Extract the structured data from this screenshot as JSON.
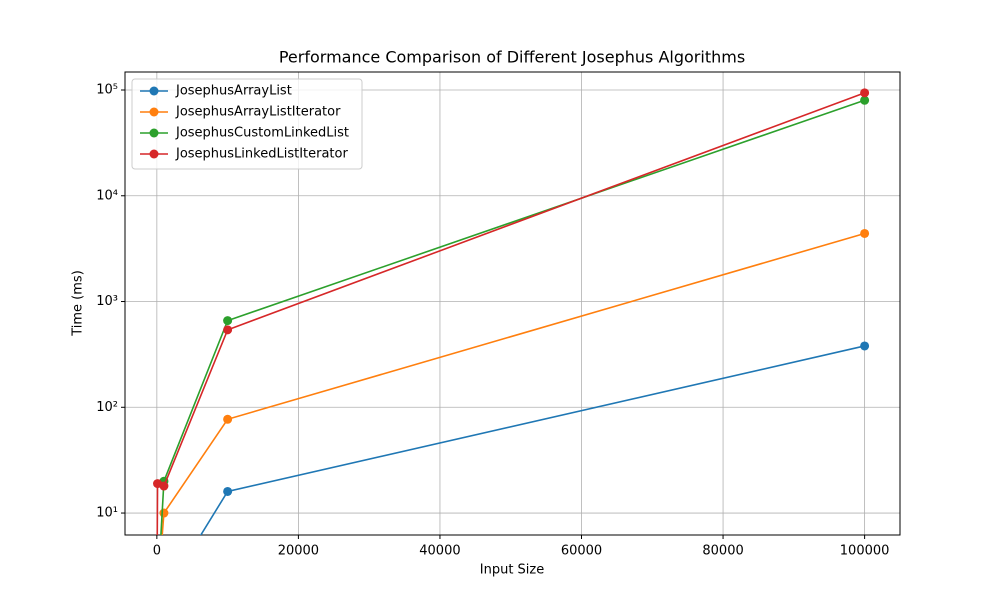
{
  "chart_data": {
    "type": "line",
    "title": "Performance Comparison of Different Josephus Algorithms",
    "x_label": "Input Size",
    "y_label": "Time (ms)",
    "x": [
      10,
      100,
      1000,
      10000,
      100000
    ],
    "series": [
      {
        "name": "JosephusArrayList",
        "color": "#1f77b4",
        "values": [
          0,
          0,
          0,
          16,
          380
        ]
      },
      {
        "name": "JosephusArrayListIterator",
        "color": "#ff7f0e",
        "values": [
          0,
          0,
          10,
          77,
          4400
        ]
      },
      {
        "name": "JosephusCustomLinkedList",
        "color": "#2ca02c",
        "values": [
          0,
          0,
          20,
          660,
          80000
        ]
      },
      {
        "name": "JosephusLinkedListIterator",
        "color": "#d62728",
        "values": [
          0,
          19,
          18,
          540,
          94000
        ]
      }
    ],
    "xlim": [
      -4500,
      105000
    ],
    "xticks": [
      0,
      20000,
      40000,
      60000,
      80000,
      100000
    ],
    "ylim": [
      6.2,
      148000
    ],
    "y_scale": "log",
    "yticks": [
      {
        "value": 10,
        "label": "10¹"
      },
      {
        "value": 100,
        "label": "10²"
      },
      {
        "value": 1000,
        "label": "10³"
      },
      {
        "value": 10000,
        "label": "10⁴"
      },
      {
        "value": 100000,
        "label": "10⁵"
      }
    ],
    "grid": true,
    "legend": "upper left"
  }
}
